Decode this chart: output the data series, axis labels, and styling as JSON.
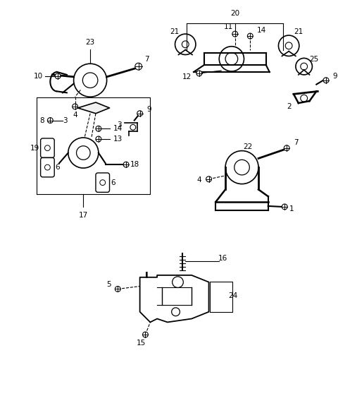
{
  "background_color": "#ffffff",
  "line_color": "#000000",
  "text_color": "#000000",
  "font_size": 7.5,
  "fig_width": 4.8,
  "fig_height": 5.78,
  "dpi": 100
}
